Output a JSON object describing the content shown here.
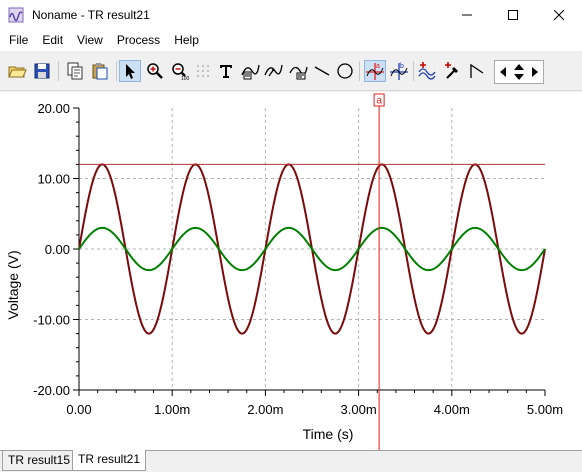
{
  "window": {
    "title": "Noname - TR result21",
    "min_icon": "minimize-icon",
    "max_icon": "maximize-icon",
    "close_icon": "close-icon"
  },
  "menu": {
    "items": [
      {
        "label": "File"
      },
      {
        "label": "Edit"
      },
      {
        "label": "View"
      },
      {
        "label": "Process"
      },
      {
        "label": "Help"
      }
    ]
  },
  "toolbar": {
    "buttons": [
      {
        "name": "open-folder-icon"
      },
      {
        "name": "save-icon"
      },
      {
        "name": "copy-icon"
      },
      {
        "name": "paste-icon"
      },
      {
        "name": "pointer-icon",
        "pressed": true
      },
      {
        "name": "zoom-in-icon"
      },
      {
        "name": "zoom-out-icon"
      },
      {
        "name": "grid-icon"
      },
      {
        "name": "text-icon"
      },
      {
        "name": "curve-label-icon"
      },
      {
        "name": "curve-label-alt-icon"
      },
      {
        "name": "curve-marker-icon"
      },
      {
        "name": "line-tool-icon"
      },
      {
        "name": "circle-tool-icon"
      },
      {
        "name": "cursor-a-icon",
        "pressed": true
      },
      {
        "name": "cursor-b-icon"
      },
      {
        "name": "add-curve-icon"
      },
      {
        "name": "probe-icon"
      },
      {
        "name": "ramp-icon"
      },
      {
        "name": "arrow-left-icon"
      },
      {
        "name": "arrow-updown-icon"
      },
      {
        "name": "arrow-right-icon"
      }
    ]
  },
  "colors": {
    "series_red": "#7a0b0b",
    "series_green": "#008000",
    "cursor": "#e0201c",
    "cursor_hline": "#b03030",
    "grid": "#b4b4b4"
  },
  "chart_data": {
    "type": "line",
    "xlabel": "Time (s)",
    "ylabel": "Voltage (V)",
    "xlim": [
      0,
      5
    ],
    "ylim": [
      -20,
      20
    ],
    "x_ticks": [
      "0.00",
      "1.00m",
      "2.00m",
      "3.00m",
      "4.00m",
      "5.00m"
    ],
    "y_ticks": [
      "20.00",
      "10.00",
      "0.00",
      "-10.00",
      "-20.00"
    ],
    "grid": true,
    "series": [
      {
        "color": "#7a0b0b",
        "amplitude": 12,
        "period": 1,
        "phase": 0
      },
      {
        "color": "#008000",
        "amplitude": 3,
        "period": 1,
        "phase": 0
      }
    ],
    "cursor": {
      "label": "a",
      "x": 3.22,
      "y": 12
    }
  },
  "tabs": [
    {
      "label": "TR result15",
      "active": false
    },
    {
      "label": "TR result21",
      "active": true
    }
  ]
}
